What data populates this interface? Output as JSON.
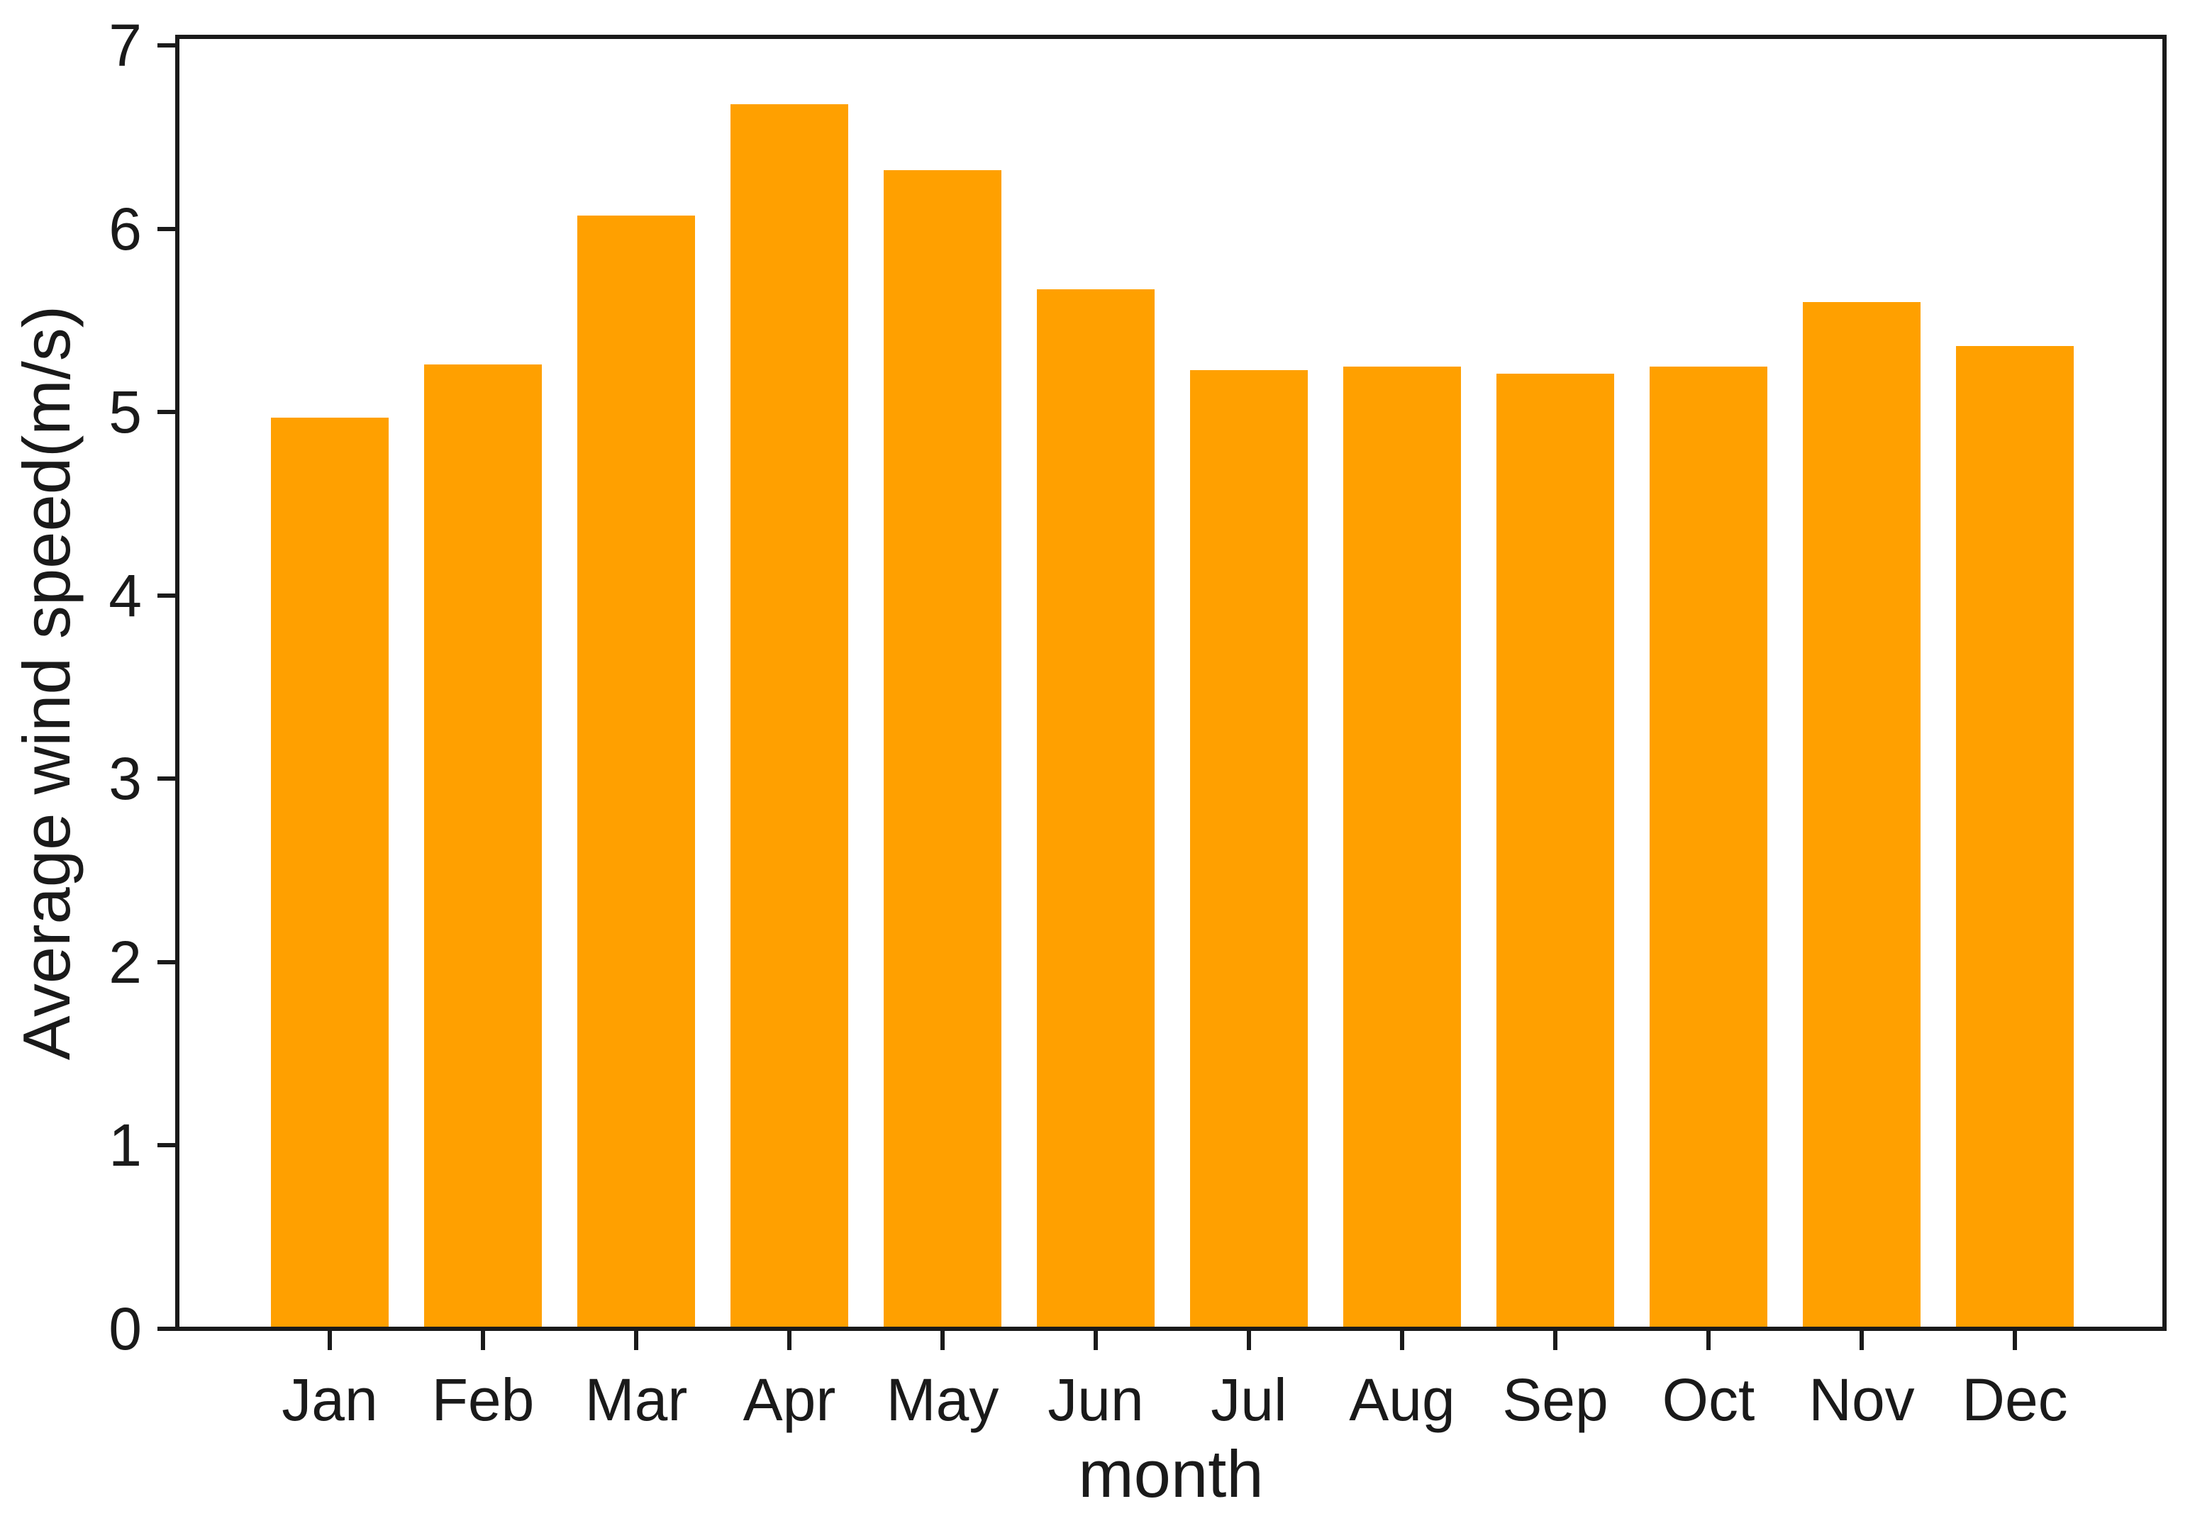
{
  "figure": {
    "background_color": "#ffffff",
    "axis_color": "#1a1a1a",
    "text_color": "#1a1a1a"
  },
  "chart_data": {
    "type": "bar",
    "title": "",
    "categories": [
      "Jan",
      "Feb",
      "Mar",
      "Apr",
      "May",
      "Jun",
      "Jul",
      "Aug",
      "Sep",
      "Oct",
      "Nov",
      "Dec"
    ],
    "values": [
      4.97,
      5.26,
      6.07,
      6.68,
      6.32,
      5.67,
      5.23,
      5.25,
      5.21,
      5.25,
      5.6,
      5.36
    ],
    "xlabel": "month",
    "ylabel": "Average wind speed(m/s)",
    "ylim": [
      0,
      7
    ],
    "yticks": [
      0,
      1,
      2,
      3,
      4,
      5,
      6,
      7
    ],
    "bar_color": "#FFA000",
    "grid": false,
    "legend": null
  }
}
